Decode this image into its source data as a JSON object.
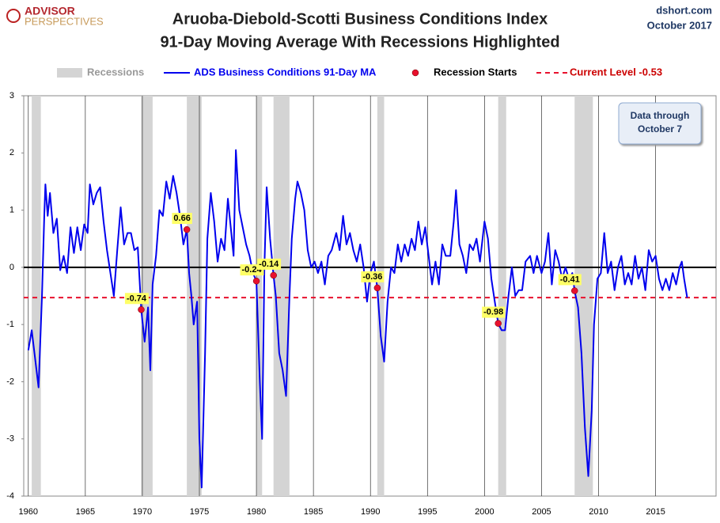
{
  "chart_data": {
    "type": "line",
    "title": "Aruoba-Diebold-Scotti Business Conditions Index",
    "subtitle": "91-Day Moving Average With Recessions Highlighted",
    "logo": [
      "ADVISOR",
      "PERSPECTIVES"
    ],
    "source": "dshort.com",
    "date": "October 2017",
    "annotation": [
      "Data through",
      "October 7"
    ],
    "xlim": [
      1959.6,
      2020.3
    ],
    "ylim": [
      -4,
      3
    ],
    "xticks": [
      1960,
      1965,
      1970,
      1975,
      1980,
      1985,
      1990,
      1995,
      2000,
      2005,
      2010,
      2015
    ],
    "yticks": [
      -4,
      -3,
      -2,
      -1,
      0,
      1,
      2,
      3
    ],
    "grid": true,
    "recessions": {
      "name": "Recessions",
      "color": "#d4d4d4",
      "periods": [
        [
          1960.3,
          1961.1
        ],
        [
          1969.9,
          1970.9
        ],
        [
          1973.9,
          1975.2
        ],
        [
          1980.0,
          1980.5
        ],
        [
          1981.5,
          1982.9
        ],
        [
          1990.6,
          1991.2
        ],
        [
          2001.2,
          2001.9
        ],
        [
          2007.9,
          2009.5
        ]
      ]
    },
    "reference_line": {
      "name": "Current Level -0.53",
      "value": -0.53,
      "color": "#e8112d"
    },
    "series": [
      {
        "name": "ADS Business Conditions 91-Day MA",
        "color": "#0000ee",
        "x": [
          1960.0,
          1960.3,
          1960.6,
          1960.9,
          1961.2,
          1961.4,
          1961.5,
          1961.7,
          1961.9,
          1962.2,
          1962.5,
          1962.8,
          1963.1,
          1963.4,
          1963.7,
          1964.0,
          1964.3,
          1964.6,
          1964.9,
          1965.2,
          1965.4,
          1965.7,
          1966.0,
          1966.3,
          1966.6,
          1966.9,
          1967.2,
          1967.5,
          1967.8,
          1968.1,
          1968.4,
          1968.7,
          1969.0,
          1969.3,
          1969.6,
          1969.9,
          1970.2,
          1970.5,
          1970.7,
          1970.9,
          1971.2,
          1971.5,
          1971.8,
          1972.1,
          1972.4,
          1972.7,
          1973.0,
          1973.3,
          1973.6,
          1973.9,
          1974.1,
          1974.3,
          1974.5,
          1974.8,
          1975.0,
          1975.2,
          1975.5,
          1975.7,
          1976.0,
          1976.3,
          1976.6,
          1976.9,
          1977.2,
          1977.5,
          1977.8,
          1978.0,
          1978.2,
          1978.5,
          1978.8,
          1979.1,
          1979.4,
          1979.7,
          1980.0,
          1980.3,
          1980.5,
          1980.7,
          1980.9,
          1981.2,
          1981.5,
          1981.7,
          1982.0,
          1982.3,
          1982.6,
          1982.9,
          1983.1,
          1983.4,
          1983.6,
          1983.9,
          1984.2,
          1984.5,
          1984.8,
          1985.1,
          1985.4,
          1985.7,
          1986.0,
          1986.3,
          1986.6,
          1987.0,
          1987.3,
          1987.6,
          1987.9,
          1988.2,
          1988.5,
          1988.8,
          1989.1,
          1989.4,
          1989.7,
          1990.0,
          1990.3,
          1990.6,
          1990.9,
          1991.2,
          1991.5,
          1991.8,
          1992.1,
          1992.4,
          1992.7,
          1993.0,
          1993.3,
          1993.6,
          1993.9,
          1994.2,
          1994.5,
          1994.8,
          1995.1,
          1995.4,
          1995.7,
          1996.0,
          1996.3,
          1996.6,
          1997.0,
          1997.3,
          1997.5,
          1997.8,
          1998.1,
          1998.4,
          1998.7,
          1999.0,
          1999.3,
          1999.6,
          2000.0,
          2000.3,
          2000.6,
          2000.9,
          2001.2,
          2001.5,
          2001.8,
          2002.1,
          2002.4,
          2002.7,
          2003.0,
          2003.3,
          2003.6,
          2004.0,
          2004.3,
          2004.6,
          2005.0,
          2005.3,
          2005.6,
          2005.9,
          2006.2,
          2006.5,
          2006.8,
          2007.1,
          2007.4,
          2007.7,
          2007.9,
          2008.2,
          2008.5,
          2008.8,
          2009.1,
          2009.4,
          2009.6,
          2009.9,
          2010.2,
          2010.5,
          2010.8,
          2011.1,
          2011.4,
          2011.7,
          2012.0,
          2012.3,
          2012.6,
          2012.9,
          2013.2,
          2013.5,
          2013.8,
          2014.1,
          2014.4,
          2014.7,
          2015.0,
          2015.3,
          2015.6,
          2015.9,
          2016.2,
          2016.5,
          2016.8,
          2017.1,
          2017.3,
          2017.5,
          2017.77
        ],
        "values": [
          -1.45,
          -1.1,
          -1.6,
          -2.1,
          -0.5,
          0.9,
          1.45,
          0.9,
          1.3,
          0.6,
          0.85,
          -0.05,
          0.2,
          -0.1,
          0.7,
          0.25,
          0.7,
          0.3,
          0.75,
          0.6,
          1.45,
          1.1,
          1.3,
          1.4,
          0.8,
          0.3,
          -0.1,
          -0.5,
          0.3,
          1.05,
          0.4,
          0.6,
          0.6,
          0.3,
          0.35,
          -0.74,
          -1.3,
          -0.7,
          -1.8,
          -0.3,
          0.2,
          1.0,
          0.9,
          1.5,
          1.2,
          1.6,
          1.3,
          0.9,
          0.4,
          0.66,
          -0.1,
          -0.5,
          -1.0,
          -0.6,
          -3.0,
          -3.85,
          -1.5,
          0.5,
          1.3,
          0.8,
          0.1,
          0.5,
          0.3,
          1.2,
          0.6,
          0.2,
          2.05,
          1.0,
          0.7,
          0.4,
          0.2,
          -0.1,
          -0.24,
          -2.0,
          -3.0,
          0.0,
          1.4,
          0.5,
          -0.14,
          -0.5,
          -1.5,
          -1.8,
          -2.25,
          -0.5,
          0.5,
          1.2,
          1.5,
          1.3,
          1.0,
          0.3,
          0.0,
          0.1,
          -0.1,
          0.1,
          -0.3,
          0.2,
          0.3,
          0.6,
          0.3,
          0.9,
          0.4,
          0.6,
          0.3,
          0.1,
          0.4,
          0.0,
          -0.6,
          -0.1,
          0.1,
          -0.36,
          -1.2,
          -1.65,
          -0.6,
          0.0,
          -0.1,
          0.4,
          0.1,
          0.4,
          0.2,
          0.5,
          0.3,
          0.8,
          0.4,
          0.7,
          0.2,
          -0.3,
          0.1,
          -0.3,
          0.4,
          0.2,
          0.2,
          0.8,
          1.35,
          0.4,
          0.2,
          -0.1,
          0.4,
          0.3,
          0.5,
          0.1,
          0.8,
          0.5,
          -0.2,
          -0.6,
          -0.98,
          -1.1,
          -1.1,
          -0.5,
          0.0,
          -0.5,
          -0.4,
          -0.4,
          0.1,
          0.2,
          -0.1,
          0.2,
          -0.1,
          0.1,
          0.6,
          -0.3,
          0.3,
          0.1,
          -0.2,
          0.0,
          -0.2,
          -0.1,
          -0.41,
          -0.7,
          -1.5,
          -2.8,
          -3.65,
          -2.5,
          -1.0,
          -0.2,
          -0.1,
          0.6,
          -0.1,
          0.1,
          -0.4,
          0.0,
          0.2,
          -0.3,
          -0.1,
          -0.3,
          0.2,
          -0.2,
          0.0,
          -0.4,
          0.3,
          0.1,
          0.2,
          -0.2,
          -0.4,
          -0.2,
          -0.4,
          -0.1,
          -0.3,
          0.0,
          0.1,
          -0.2,
          -0.53
        ]
      },
      {
        "name": "Recession Starts",
        "color": "#e8112d",
        "type": "scatter",
        "x": [
          1969.9,
          1973.9,
          1980.0,
          1981.5,
          1990.6,
          2001.2,
          2007.9
        ],
        "values": [
          -0.74,
          0.66,
          -0.24,
          -0.14,
          -0.36,
          -0.98,
          -0.41
        ]
      }
    ]
  }
}
